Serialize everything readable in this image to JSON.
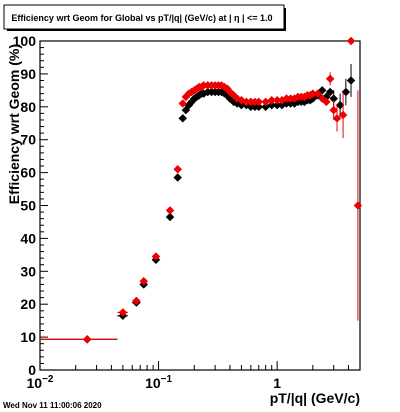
{
  "chart_data": {
    "type": "scatter",
    "title": "Efficiency wrt Geom for Global vs pT/|q| (GeV/c) at | η | <= 1.0",
    "xlabel": "pT/|q| (GeV/c)",
    "ylabel": "Efficiency wrt Geom (%)",
    "xscale": "log",
    "xlim": [
      0.01,
      5.0
    ],
    "ylim": [
      0,
      100
    ],
    "grid": true,
    "x_ticks": [
      {
        "value": 0.01,
        "base": "10",
        "exp": "−2"
      },
      {
        "value": 0.1,
        "base": "10",
        "exp": "−1"
      },
      {
        "value": 1,
        "base": "1",
        "exp": ""
      }
    ],
    "y_ticks": [
      0,
      10,
      20,
      30,
      40,
      50,
      60,
      70,
      80,
      90,
      100
    ],
    "footer": "Wed Nov 11 11:00:06 2020",
    "colors": {
      "series_black": "#000000",
      "series_red": "#ee0000",
      "grid": "#000000"
    },
    "series": [
      {
        "color": "#000000",
        "marker": "diamond",
        "points": [
          {
            "x": 0.025,
            "y": 9.3,
            "xerr": [
              0.01,
              0.045
            ],
            "yerr": 0.4
          },
          {
            "x": 0.05,
            "y": 16.5,
            "xerr": [
              0.045,
              0.055
            ],
            "yerr": 0.5
          },
          {
            "x": 0.065,
            "y": 20.5,
            "xerr": [
              0.06,
              0.07
            ],
            "yerr": 0.5
          },
          {
            "x": 0.075,
            "y": 26.0,
            "xerr": [
              0.07,
              0.08
            ],
            "yerr": 0.5
          },
          {
            "x": 0.095,
            "y": 33.5,
            "xerr": [
              0.09,
              0.1
            ],
            "yerr": 0.6
          },
          {
            "x": 0.125,
            "y": 46.5,
            "xerr": [
              0.12,
              0.13
            ],
            "yerr": 0.6
          },
          {
            "x": 0.145,
            "y": 58.5,
            "xerr": [
              0.14,
              0.15
            ],
            "yerr": 0.6
          },
          {
            "x": 0.16,
            "y": 76.5
          },
          {
            "x": 0.17,
            "y": 79
          },
          {
            "x": 0.18,
            "y": 80.5
          },
          {
            "x": 0.19,
            "y": 81.5
          },
          {
            "x": 0.2,
            "y": 82.5
          },
          {
            "x": 0.21,
            "y": 83
          },
          {
            "x": 0.22,
            "y": 83.5
          },
          {
            "x": 0.23,
            "y": 84
          },
          {
            "x": 0.24,
            "y": 84
          },
          {
            "x": 0.26,
            "y": 84.5
          },
          {
            "x": 0.28,
            "y": 84.5
          },
          {
            "x": 0.3,
            "y": 84.5
          },
          {
            "x": 0.32,
            "y": 84.5
          },
          {
            "x": 0.34,
            "y": 84.5
          },
          {
            "x": 0.36,
            "y": 84
          },
          {
            "x": 0.38,
            "y": 83.5
          },
          {
            "x": 0.4,
            "y": 82.5
          },
          {
            "x": 0.43,
            "y": 81.5
          },
          {
            "x": 0.46,
            "y": 81
          },
          {
            "x": 0.5,
            "y": 80.5
          },
          {
            "x": 0.55,
            "y": 80.5
          },
          {
            "x": 0.6,
            "y": 80
          },
          {
            "x": 0.65,
            "y": 80
          },
          {
            "x": 0.7,
            "y": 80
          },
          {
            "x": 0.8,
            "y": 80
          },
          {
            "x": 0.9,
            "y": 80.5
          },
          {
            "x": 1.0,
            "y": 80.5
          },
          {
            "x": 1.1,
            "y": 80.5
          },
          {
            "x": 1.2,
            "y": 81
          },
          {
            "x": 1.3,
            "y": 81
          },
          {
            "x": 1.4,
            "y": 81
          },
          {
            "x": 1.5,
            "y": 81.5
          },
          {
            "x": 1.6,
            "y": 81.5
          },
          {
            "x": 1.7,
            "y": 81.5
          },
          {
            "x": 1.8,
            "y": 82
          },
          {
            "x": 1.9,
            "y": 82
          },
          {
            "x": 2.0,
            "y": 82.5
          },
          {
            "x": 2.2,
            "y": 83.5
          },
          {
            "x": 2.4,
            "y": 85
          },
          {
            "x": 2.6,
            "y": 83
          },
          {
            "x": 2.8,
            "y": 84.5
          },
          {
            "x": 3.0,
            "y": 82.5,
            "yerr": 2.5
          },
          {
            "x": 3.4,
            "y": 80.5,
            "yerr": 3.5
          },
          {
            "x": 3.8,
            "y": 84.5,
            "yerr": 4
          },
          {
            "x": 4.2,
            "y": 88,
            "yerr": 5
          }
        ]
      },
      {
        "color": "#ee0000",
        "marker": "diamond",
        "points": [
          {
            "x": 0.025,
            "y": 9.3,
            "xerr": [
              0.01,
              0.045
            ],
            "yerr": 0.4
          },
          {
            "x": 0.05,
            "y": 17.5,
            "xerr": [
              0.045,
              0.055
            ],
            "yerr": 0.5
          },
          {
            "x": 0.065,
            "y": 21.0,
            "xerr": [
              0.06,
              0.07
            ],
            "yerr": 0.5
          },
          {
            "x": 0.075,
            "y": 27.0,
            "xerr": [
              0.07,
              0.08
            ],
            "yerr": 0.5
          },
          {
            "x": 0.095,
            "y": 34.5,
            "xerr": [
              0.09,
              0.1
            ],
            "yerr": 0.6
          },
          {
            "x": 0.125,
            "y": 48.5,
            "xerr": [
              0.12,
              0.13
            ],
            "yerr": 0.6
          },
          {
            "x": 0.145,
            "y": 61.0,
            "xerr": [
              0.14,
              0.15
            ],
            "yerr": 0.6
          },
          {
            "x": 0.16,
            "y": 81
          },
          {
            "x": 0.17,
            "y": 83
          },
          {
            "x": 0.18,
            "y": 84
          },
          {
            "x": 0.19,
            "y": 84.5
          },
          {
            "x": 0.2,
            "y": 85
          },
          {
            "x": 0.21,
            "y": 85.5
          },
          {
            "x": 0.22,
            "y": 86
          },
          {
            "x": 0.23,
            "y": 86
          },
          {
            "x": 0.24,
            "y": 86.5
          },
          {
            "x": 0.26,
            "y": 86.5
          },
          {
            "x": 0.28,
            "y": 86.5
          },
          {
            "x": 0.3,
            "y": 86.5
          },
          {
            "x": 0.32,
            "y": 86.5
          },
          {
            "x": 0.34,
            "y": 86.5
          },
          {
            "x": 0.36,
            "y": 86
          },
          {
            "x": 0.38,
            "y": 85.5
          },
          {
            "x": 0.4,
            "y": 84.5
          },
          {
            "x": 0.43,
            "y": 83.5
          },
          {
            "x": 0.46,
            "y": 82.5
          },
          {
            "x": 0.5,
            "y": 82
          },
          {
            "x": 0.55,
            "y": 81.5
          },
          {
            "x": 0.6,
            "y": 81.5
          },
          {
            "x": 0.65,
            "y": 81.5
          },
          {
            "x": 0.7,
            "y": 81.5
          },
          {
            "x": 0.8,
            "y": 81.5
          },
          {
            "x": 0.9,
            "y": 82
          },
          {
            "x": 1.0,
            "y": 82
          },
          {
            "x": 1.1,
            "y": 82
          },
          {
            "x": 1.2,
            "y": 82.5
          },
          {
            "x": 1.3,
            "y": 82.5
          },
          {
            "x": 1.4,
            "y": 82.5
          },
          {
            "x": 1.5,
            "y": 83
          },
          {
            "x": 1.6,
            "y": 83
          },
          {
            "x": 1.7,
            "y": 83
          },
          {
            "x": 1.8,
            "y": 83.5
          },
          {
            "x": 1.9,
            "y": 83.5
          },
          {
            "x": 2.0,
            "y": 84
          },
          {
            "x": 2.2,
            "y": 84
          },
          {
            "x": 2.4,
            "y": 82.5
          },
          {
            "x": 2.6,
            "y": 81.5
          },
          {
            "x": 2.8,
            "y": 88.5,
            "yerr": 2
          },
          {
            "x": 3.0,
            "y": 79,
            "yerr": 3
          },
          {
            "x": 3.2,
            "y": 76.5,
            "yerr": 4
          },
          {
            "x": 3.6,
            "y": 77.5,
            "yerr": 7
          },
          {
            "x": 4.2,
            "y": 100,
            "yerr": 0
          },
          {
            "x": 4.8,
            "y": 50,
            "yerr": 35
          }
        ]
      }
    ]
  }
}
